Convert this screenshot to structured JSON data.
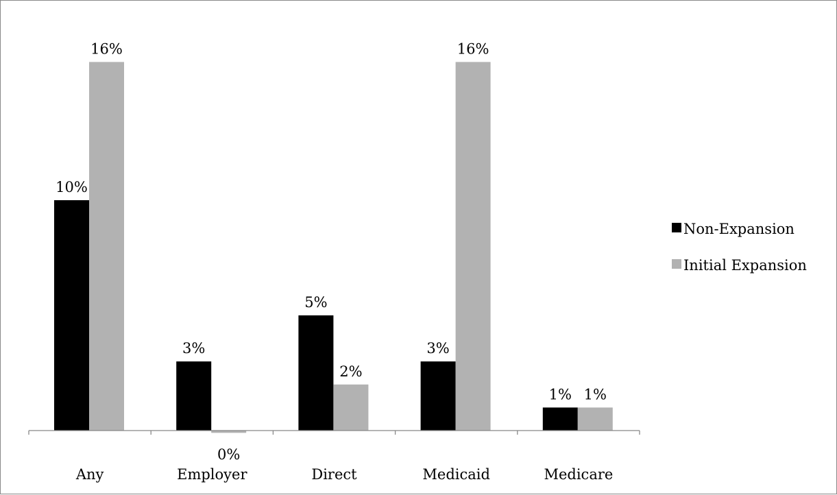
{
  "chart_data": {
    "type": "bar",
    "title": "",
    "xlabel": "",
    "ylabel": "",
    "categories": [
      "Any",
      "Employer",
      "Direct",
      "Medicaid",
      "Medicare"
    ],
    "series": [
      {
        "name": "Non-Expansion",
        "color": "#000000",
        "values": [
          0.1,
          0.03,
          0.05,
          0.03,
          0.01
        ],
        "labels": [
          "10%",
          "3%",
          "5%",
          "3%",
          "1%"
        ]
      },
      {
        "name": "Initial Expansion",
        "color": "#b2b2b2",
        "values": [
          0.16,
          -0.001,
          0.02,
          0.16,
          0.01
        ],
        "labels": [
          "16%",
          "0%",
          "2%",
          "16%",
          "1%"
        ]
      }
    ],
    "ylim": [
      -0.01,
      0.18
    ],
    "grid": false,
    "legend_position": "right"
  }
}
